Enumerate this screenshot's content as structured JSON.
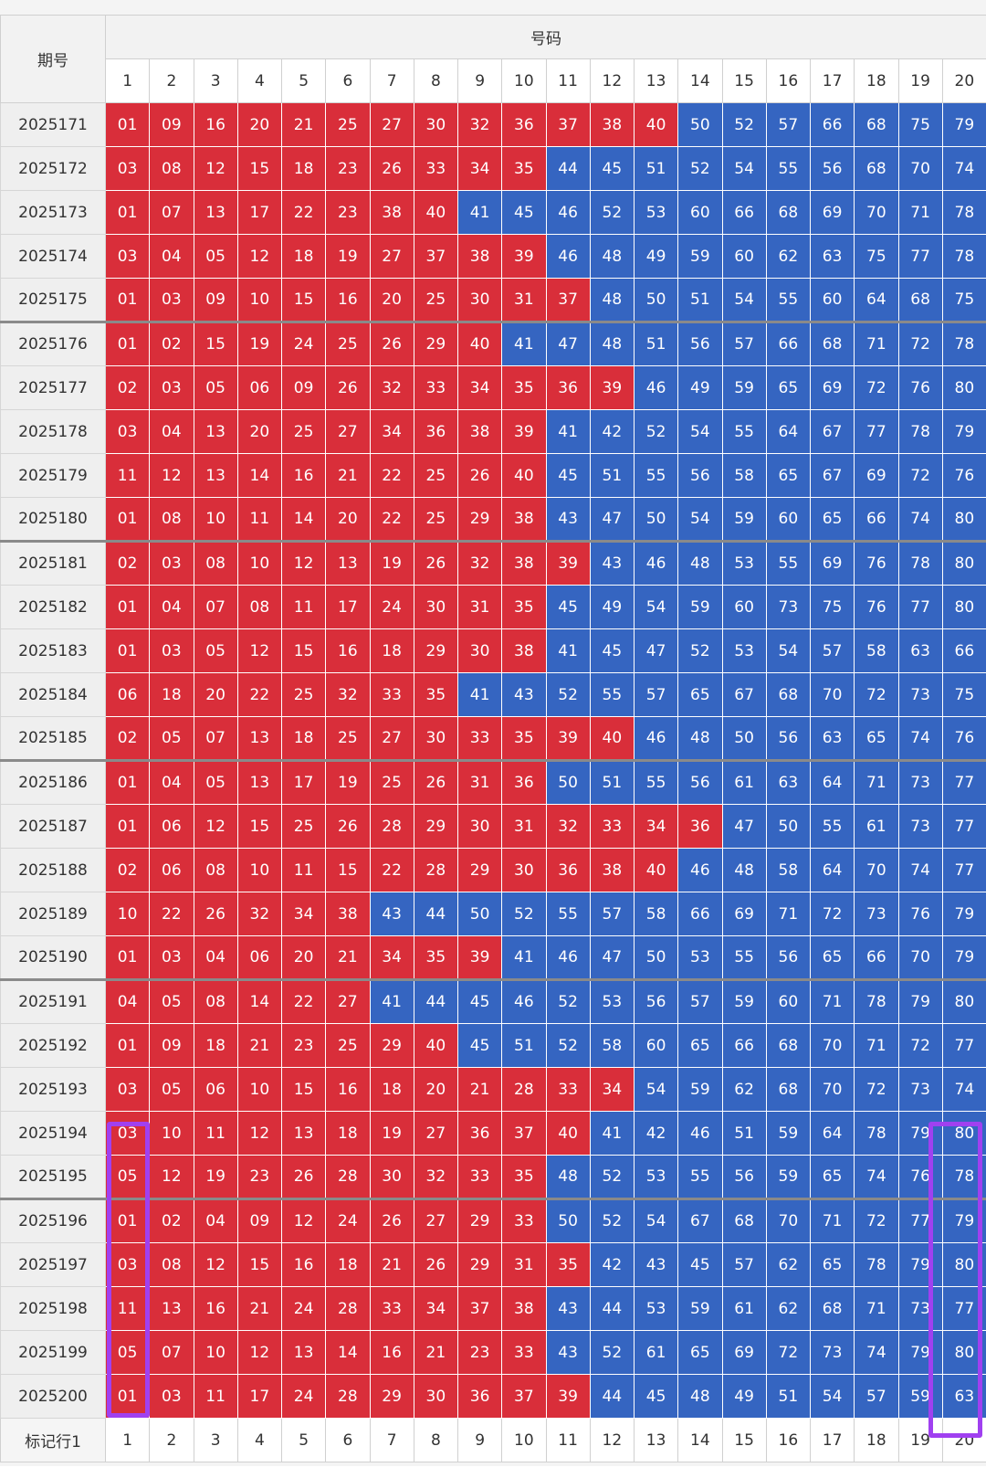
{
  "header": {
    "period_label": "期号",
    "numbers_label": "号码",
    "columns": [
      "1",
      "2",
      "3",
      "4",
      "5",
      "6",
      "7",
      "8",
      "9",
      "10",
      "11",
      "12",
      "13",
      "14",
      "15",
      "16",
      "17",
      "18",
      "19",
      "20"
    ]
  },
  "colors": {
    "low": "#d92e3a",
    "high": "#3565c1",
    "highlight": "#a040f0"
  },
  "rows": [
    {
      "period": "2025171",
      "numbers": [
        "01",
        "09",
        "16",
        "20",
        "21",
        "25",
        "27",
        "30",
        "32",
        "36",
        "37",
        "38",
        "40",
        "50",
        "52",
        "57",
        "66",
        "68",
        "75",
        "79"
      ]
    },
    {
      "period": "2025172",
      "numbers": [
        "03",
        "08",
        "12",
        "15",
        "18",
        "23",
        "26",
        "33",
        "34",
        "35",
        "44",
        "45",
        "51",
        "52",
        "54",
        "55",
        "56",
        "68",
        "70",
        "74"
      ]
    },
    {
      "period": "2025173",
      "numbers": [
        "01",
        "07",
        "13",
        "17",
        "22",
        "23",
        "38",
        "40",
        "41",
        "45",
        "46",
        "52",
        "53",
        "60",
        "66",
        "68",
        "69",
        "70",
        "71",
        "78"
      ]
    },
    {
      "period": "2025174",
      "numbers": [
        "03",
        "04",
        "05",
        "12",
        "18",
        "19",
        "27",
        "37",
        "38",
        "39",
        "46",
        "48",
        "49",
        "59",
        "60",
        "62",
        "63",
        "75",
        "77",
        "78"
      ]
    },
    {
      "period": "2025175",
      "numbers": [
        "01",
        "03",
        "09",
        "10",
        "15",
        "16",
        "20",
        "25",
        "30",
        "31",
        "37",
        "48",
        "50",
        "51",
        "54",
        "55",
        "60",
        "64",
        "68",
        "75"
      ]
    },
    {
      "period": "2025176",
      "numbers": [
        "01",
        "02",
        "15",
        "19",
        "24",
        "25",
        "26",
        "29",
        "40",
        "41",
        "47",
        "48",
        "51",
        "56",
        "57",
        "66",
        "68",
        "71",
        "72",
        "78"
      ]
    },
    {
      "period": "2025177",
      "numbers": [
        "02",
        "03",
        "05",
        "06",
        "09",
        "26",
        "32",
        "33",
        "34",
        "35",
        "36",
        "39",
        "46",
        "49",
        "59",
        "65",
        "69",
        "72",
        "76",
        "80"
      ]
    },
    {
      "period": "2025178",
      "numbers": [
        "03",
        "04",
        "13",
        "20",
        "25",
        "27",
        "34",
        "36",
        "38",
        "39",
        "41",
        "42",
        "52",
        "54",
        "55",
        "64",
        "67",
        "77",
        "78",
        "79"
      ]
    },
    {
      "period": "2025179",
      "numbers": [
        "11",
        "12",
        "13",
        "14",
        "16",
        "21",
        "22",
        "25",
        "26",
        "40",
        "45",
        "51",
        "55",
        "56",
        "58",
        "65",
        "67",
        "69",
        "72",
        "76"
      ]
    },
    {
      "period": "2025180",
      "numbers": [
        "01",
        "08",
        "10",
        "11",
        "14",
        "20",
        "22",
        "25",
        "29",
        "38",
        "43",
        "47",
        "50",
        "54",
        "59",
        "60",
        "65",
        "66",
        "74",
        "80"
      ]
    },
    {
      "period": "2025181",
      "numbers": [
        "02",
        "03",
        "08",
        "10",
        "12",
        "13",
        "19",
        "26",
        "32",
        "38",
        "39",
        "43",
        "46",
        "48",
        "53",
        "55",
        "69",
        "76",
        "78",
        "80"
      ]
    },
    {
      "period": "2025182",
      "numbers": [
        "01",
        "04",
        "07",
        "08",
        "11",
        "17",
        "24",
        "30",
        "31",
        "35",
        "45",
        "49",
        "54",
        "59",
        "60",
        "73",
        "75",
        "76",
        "77",
        "80"
      ]
    },
    {
      "period": "2025183",
      "numbers": [
        "01",
        "03",
        "05",
        "12",
        "15",
        "16",
        "18",
        "29",
        "30",
        "38",
        "41",
        "45",
        "47",
        "52",
        "53",
        "54",
        "57",
        "58",
        "63",
        "66"
      ]
    },
    {
      "period": "2025184",
      "numbers": [
        "06",
        "18",
        "20",
        "22",
        "25",
        "32",
        "33",
        "35",
        "41",
        "43",
        "52",
        "55",
        "57",
        "65",
        "67",
        "68",
        "70",
        "72",
        "73",
        "75"
      ]
    },
    {
      "period": "2025185",
      "numbers": [
        "02",
        "05",
        "07",
        "13",
        "18",
        "25",
        "27",
        "30",
        "33",
        "35",
        "39",
        "40",
        "46",
        "48",
        "50",
        "56",
        "63",
        "65",
        "74",
        "76"
      ]
    },
    {
      "period": "2025186",
      "numbers": [
        "01",
        "04",
        "05",
        "13",
        "17",
        "19",
        "25",
        "26",
        "31",
        "36",
        "50",
        "51",
        "55",
        "56",
        "61",
        "63",
        "64",
        "71",
        "73",
        "77"
      ]
    },
    {
      "period": "2025187",
      "numbers": [
        "01",
        "06",
        "12",
        "15",
        "25",
        "26",
        "28",
        "29",
        "30",
        "31",
        "32",
        "33",
        "34",
        "36",
        "47",
        "50",
        "55",
        "61",
        "73",
        "77"
      ]
    },
    {
      "period": "2025188",
      "numbers": [
        "02",
        "06",
        "08",
        "10",
        "11",
        "15",
        "22",
        "28",
        "29",
        "30",
        "36",
        "38",
        "40",
        "46",
        "48",
        "58",
        "64",
        "70",
        "74",
        "77"
      ]
    },
    {
      "period": "2025189",
      "numbers": [
        "10",
        "22",
        "26",
        "32",
        "34",
        "38",
        "43",
        "44",
        "50",
        "52",
        "55",
        "57",
        "58",
        "66",
        "69",
        "71",
        "72",
        "73",
        "76",
        "79"
      ]
    },
    {
      "period": "2025190",
      "numbers": [
        "01",
        "03",
        "04",
        "06",
        "20",
        "21",
        "34",
        "35",
        "39",
        "41",
        "46",
        "47",
        "50",
        "53",
        "55",
        "56",
        "65",
        "66",
        "70",
        "79"
      ]
    },
    {
      "period": "2025191",
      "numbers": [
        "04",
        "05",
        "08",
        "14",
        "22",
        "27",
        "41",
        "44",
        "45",
        "46",
        "52",
        "53",
        "56",
        "57",
        "59",
        "60",
        "71",
        "78",
        "79",
        "80"
      ]
    },
    {
      "period": "2025192",
      "numbers": [
        "01",
        "09",
        "18",
        "21",
        "23",
        "25",
        "29",
        "40",
        "45",
        "51",
        "52",
        "58",
        "60",
        "65",
        "66",
        "68",
        "70",
        "71",
        "72",
        "77"
      ]
    },
    {
      "period": "2025193",
      "numbers": [
        "03",
        "05",
        "06",
        "10",
        "15",
        "16",
        "18",
        "20",
        "21",
        "28",
        "33",
        "34",
        "54",
        "59",
        "62",
        "68",
        "70",
        "72",
        "73",
        "74"
      ]
    },
    {
      "period": "2025194",
      "numbers": [
        "03",
        "10",
        "11",
        "12",
        "13",
        "18",
        "19",
        "27",
        "36",
        "37",
        "40",
        "41",
        "42",
        "46",
        "51",
        "59",
        "64",
        "78",
        "79",
        "80"
      ]
    },
    {
      "period": "2025195",
      "numbers": [
        "05",
        "12",
        "19",
        "23",
        "26",
        "28",
        "30",
        "32",
        "33",
        "35",
        "48",
        "52",
        "53",
        "55",
        "56",
        "59",
        "65",
        "74",
        "76",
        "78"
      ]
    },
    {
      "period": "2025196",
      "numbers": [
        "01",
        "02",
        "04",
        "09",
        "12",
        "24",
        "26",
        "27",
        "29",
        "33",
        "50",
        "52",
        "54",
        "67",
        "68",
        "70",
        "71",
        "72",
        "77",
        "79"
      ]
    },
    {
      "period": "2025197",
      "numbers": [
        "03",
        "08",
        "12",
        "15",
        "16",
        "18",
        "21",
        "26",
        "29",
        "31",
        "35",
        "42",
        "43",
        "45",
        "57",
        "62",
        "65",
        "78",
        "79",
        "80"
      ]
    },
    {
      "period": "2025198",
      "numbers": [
        "11",
        "13",
        "16",
        "21",
        "24",
        "28",
        "33",
        "34",
        "37",
        "38",
        "43",
        "44",
        "53",
        "59",
        "61",
        "62",
        "68",
        "71",
        "73",
        "77"
      ]
    },
    {
      "period": "2025199",
      "numbers": [
        "05",
        "07",
        "10",
        "12",
        "13",
        "14",
        "16",
        "21",
        "23",
        "33",
        "43",
        "52",
        "61",
        "65",
        "69",
        "72",
        "73",
        "74",
        "79",
        "80"
      ]
    },
    {
      "period": "2025200",
      "numbers": [
        "01",
        "03",
        "11",
        "17",
        "24",
        "28",
        "29",
        "30",
        "36",
        "37",
        "39",
        "44",
        "45",
        "48",
        "49",
        "51",
        "54",
        "57",
        "59",
        "63"
      ]
    }
  ],
  "footer": {
    "label": "标记行1",
    "values": [
      "1",
      "2",
      "3",
      "4",
      "5",
      "6",
      "7",
      "8",
      "9",
      "10",
      "11",
      "12",
      "13",
      "14",
      "15",
      "16",
      "17",
      "18",
      "19",
      "20"
    ]
  }
}
